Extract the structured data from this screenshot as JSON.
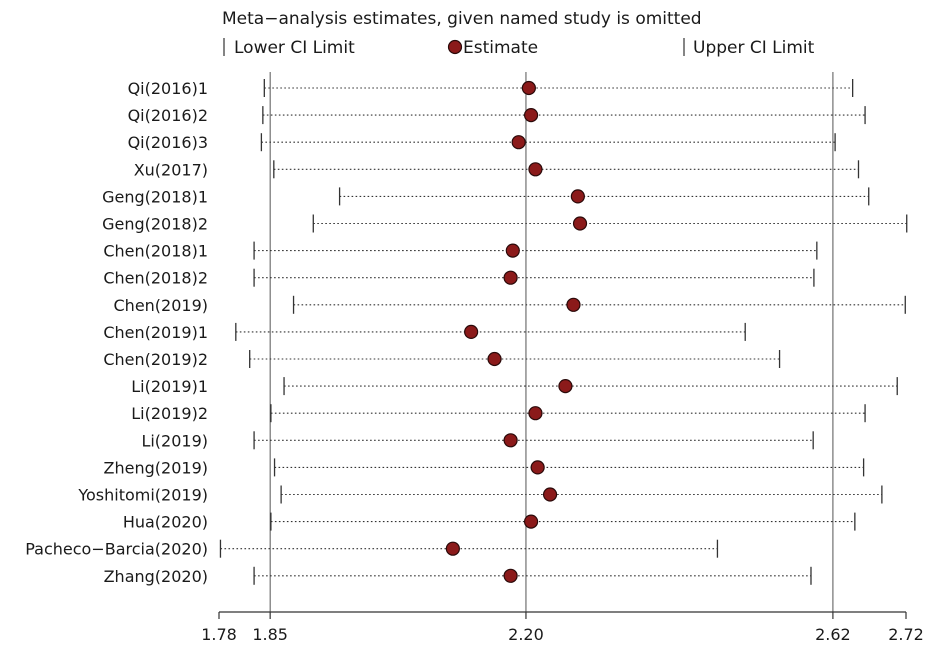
{
  "chart_data": {
    "type": "forest",
    "title": "Meta−analysis estimates, given named study is omitted",
    "legend": {
      "lower": "Lower CI Limit",
      "estimate": "Estimate",
      "upper": "Upper CI Limit"
    },
    "x_ticks": [
      {
        "value": 1.78,
        "label": "1.78"
      },
      {
        "value": 1.85,
        "label": "1.85"
      },
      {
        "value": 2.2,
        "label": "2.20"
      },
      {
        "value": 2.62,
        "label": "2.62"
      },
      {
        "value": 2.72,
        "label": "2.72"
      }
    ],
    "xlim": [
      1.78,
      2.72
    ],
    "reference_lines": [
      1.85,
      2.2,
      2.62
    ],
    "studies": [
      {
        "name": "Qi(2016)1",
        "lower": 1.842,
        "estimate": 2.204,
        "upper": 2.647
      },
      {
        "name": "Qi(2016)2",
        "lower": 1.84,
        "estimate": 2.207,
        "upper": 2.664
      },
      {
        "name": "Qi(2016)3",
        "lower": 1.838,
        "estimate": 2.19,
        "upper": 2.623
      },
      {
        "name": "Xu(2017)",
        "lower": 1.855,
        "estimate": 2.213,
        "upper": 2.655
      },
      {
        "name": "Geng(2018)1",
        "lower": 1.945,
        "estimate": 2.271,
        "upper": 2.669
      },
      {
        "name": "Geng(2018)2",
        "lower": 1.909,
        "estimate": 2.274,
        "upper": 2.721
      },
      {
        "name": "Chen(2018)1",
        "lower": 1.828,
        "estimate": 2.182,
        "upper": 2.598
      },
      {
        "name": "Chen(2018)2",
        "lower": 1.828,
        "estimate": 2.179,
        "upper": 2.594
      },
      {
        "name": "Chen(2019)",
        "lower": 1.882,
        "estimate": 2.265,
        "upper": 2.719
      },
      {
        "name": "Chen(2019)1",
        "lower": 1.803,
        "estimate": 2.125,
        "upper": 2.5
      },
      {
        "name": "Chen(2019)2",
        "lower": 1.822,
        "estimate": 2.157,
        "upper": 2.547
      },
      {
        "name": "Li(2019)1",
        "lower": 1.869,
        "estimate": 2.254,
        "upper": 2.708
      },
      {
        "name": "Li(2019)2",
        "lower": 1.851,
        "estimate": 2.213,
        "upper": 2.664
      },
      {
        "name": "Li(2019)",
        "lower": 1.828,
        "estimate": 2.179,
        "upper": 2.593
      },
      {
        "name": "Zheng(2019)",
        "lower": 1.856,
        "estimate": 2.216,
        "upper": 2.662
      },
      {
        "name": "Yoshitomi(2019)",
        "lower": 1.865,
        "estimate": 2.233,
        "upper": 2.687
      },
      {
        "name": "Hua(2020)",
        "lower": 1.851,
        "estimate": 2.207,
        "upper": 2.65
      },
      {
        "name": "Pacheco−Barcia(2020)",
        "lower": 1.782,
        "estimate": 2.1,
        "upper": 2.462
      },
      {
        "name": "Zhang(2020)",
        "lower": 1.828,
        "estimate": 2.179,
        "upper": 2.59
      }
    ]
  },
  "colors": {
    "estimate_fill": "#8b1a1a",
    "estimate_stroke": "#2a0a0a",
    "line": "#333333",
    "ref_line": "#555555"
  }
}
